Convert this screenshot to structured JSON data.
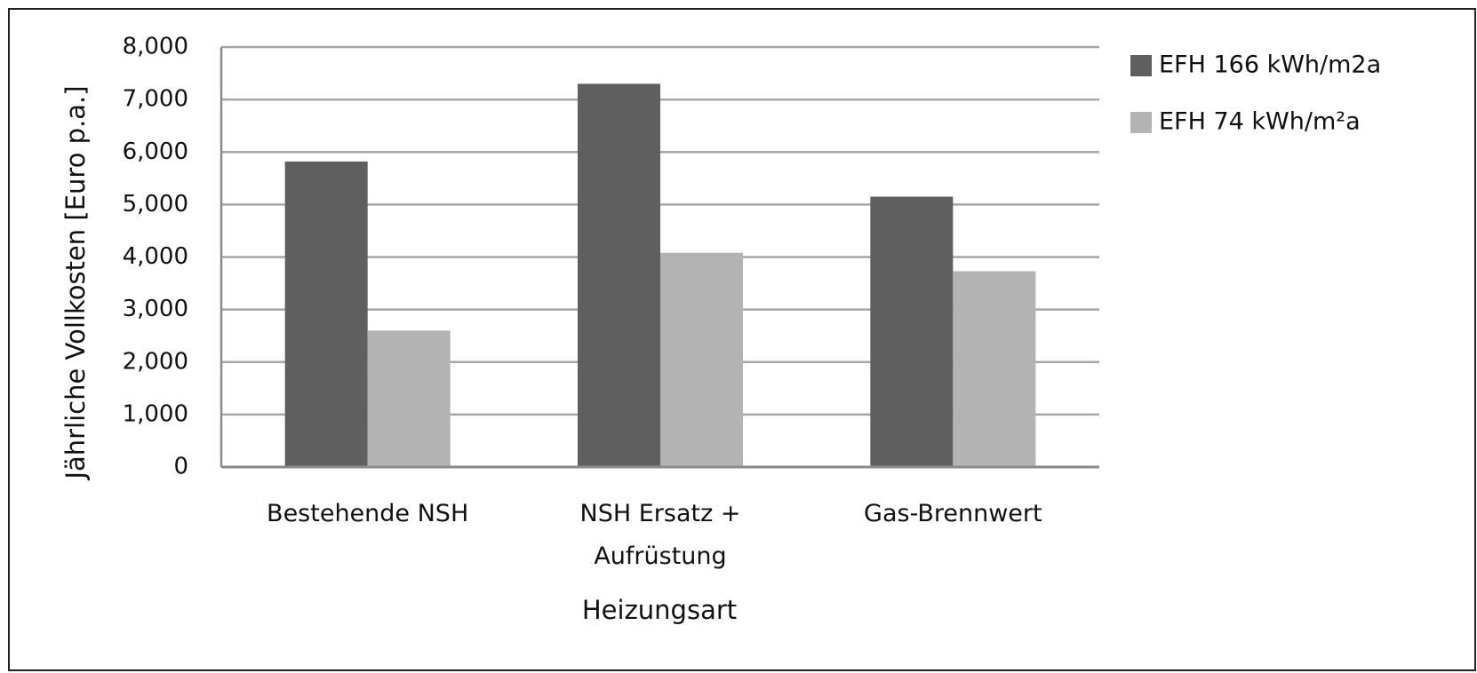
{
  "chart_data": {
    "type": "bar",
    "x_label": "Heizungsart",
    "y_label": "Jährliche Vollkosten [Euro p.a.]",
    "categories": [
      "Bestehende NSH",
      "NSH Ersatz + Aufrüstung",
      "Gas-Brennwert"
    ],
    "series": [
      {
        "name": "EFH 166 kWh/m2a",
        "color": "#5f5f5f",
        "values": [
          5820,
          7300,
          5150
        ]
      },
      {
        "name": "EFH 74 kWh/m²a",
        "color": "#b3b3b3",
        "values": [
          2600,
          4080,
          3730
        ]
      }
    ],
    "ylim": [
      0,
      8000
    ],
    "yticks": [
      0,
      {
        "value": 1000,
        "label": "1,000"
      },
      {
        "value": 2000,
        "label": "2,000"
      },
      {
        "value": 3000,
        "label": "3,000"
      },
      {
        "value": 4000,
        "label": "4,000"
      },
      {
        "value": 5000,
        "label": "5,000"
      },
      {
        "value": 6000,
        "label": "6,000"
      },
      {
        "value": 7000,
        "label": "7,000"
      },
      {
        "value": 8000,
        "label": "8,000"
      }
    ],
    "grid": true,
    "legend": "right"
  }
}
